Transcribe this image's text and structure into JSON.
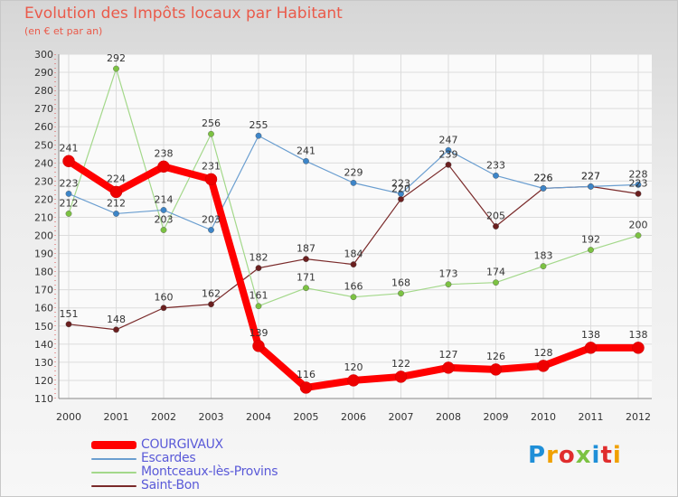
{
  "header": {
    "title": "Evolution des Impôts locaux par Habitant",
    "subtitle": "(en € et par an)"
  },
  "logo": {
    "text": "Proxiti",
    "letters": [
      "P",
      "r",
      "o",
      "x",
      "i",
      "t",
      "i"
    ],
    "colors": [
      "#1f8fd8",
      "#f0a000",
      "#e02d2d",
      "#7cc242",
      "#1f8fd8",
      "#e02d2d",
      "#f0a000"
    ]
  },
  "chart_data": {
    "type": "line",
    "title": "Evolution des Impôts locaux par Habitant",
    "subtitle": "(en € et par an)",
    "xlabel": "",
    "ylabel": "",
    "x": [
      "2000",
      "2001",
      "2002",
      "2003",
      "2004",
      "2005",
      "2006",
      "2007",
      "2008",
      "2009",
      "2010",
      "2011",
      "2012"
    ],
    "ylim": [
      110,
      300
    ],
    "yticks": [
      110,
      120,
      130,
      140,
      150,
      160,
      170,
      180,
      190,
      200,
      210,
      220,
      230,
      240,
      250,
      260,
      270,
      280,
      290,
      300
    ],
    "grid": true,
    "legend_position": "bottom-left",
    "series": [
      {
        "name": "COURGIVAUX",
        "color": "#ff0000",
        "marker_color": "#ee0000",
        "bold": true,
        "values": [
          241,
          224,
          238,
          231,
          139,
          116,
          120,
          122,
          127,
          126,
          128,
          138,
          138
        ],
        "labels": [
          "241",
          "224",
          "238",
          "231",
          "139",
          "116",
          "120",
          "122",
          "127",
          "126",
          "128",
          "138",
          "138"
        ]
      },
      {
        "name": "Escardes",
        "color": "#6a9ed0",
        "marker_color": "#3d85c8",
        "bold": false,
        "values": [
          223,
          212,
          214,
          203,
          255,
          241,
          229,
          223,
          247,
          233,
          226,
          227,
          228
        ],
        "labels": [
          "223",
          "212",
          "214",
          "203",
          "255",
          "241",
          "229",
          "223",
          "247",
          "233",
          "226",
          "227",
          "228"
        ]
      },
      {
        "name": "Montceaux-lès-Provins",
        "color": "#a3d88a",
        "marker_color": "#7cc242",
        "bold": false,
        "values": [
          212,
          292,
          203,
          256,
          161,
          171,
          166,
          168,
          173,
          174,
          183,
          192,
          200
        ],
        "labels": [
          "212",
          "292",
          "203",
          "256",
          "161",
          "171",
          "166",
          "168",
          "173",
          "174",
          "183",
          "192",
          "200"
        ]
      },
      {
        "name": "Saint-Bon",
        "color": "#7a2a2a",
        "marker_color": "#6b1f1f",
        "bold": false,
        "values": [
          151,
          148,
          160,
          162,
          182,
          187,
          184,
          220,
          239,
          205,
          226,
          227,
          223
        ],
        "labels": [
          "151",
          "148",
          "160",
          "162",
          "182",
          "187",
          "184",
          "220",
          "239",
          "205",
          "226",
          "227",
          "223"
        ]
      }
    ]
  }
}
